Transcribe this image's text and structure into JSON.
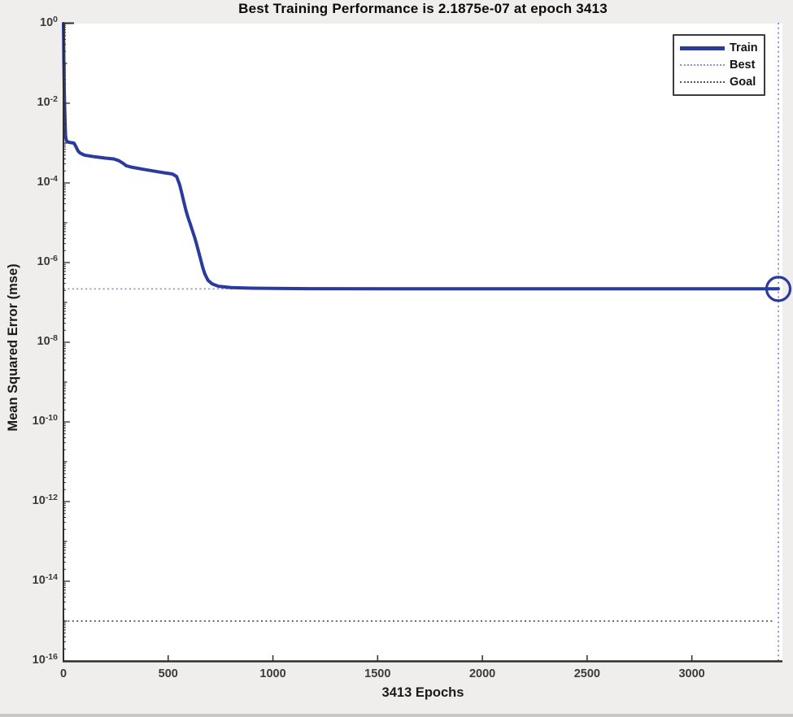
{
  "window": {
    "kind": "matlab-training-performance-figure"
  },
  "chart_data": {
    "type": "line",
    "title": "Best Training Performance is 2.1875e-07 at epoch 3413",
    "xlabel": "3413 Epochs",
    "ylabel": "Mean Squared Error  (mse)",
    "yscale": "log",
    "grid": false,
    "xlim": [
      0,
      3413
    ],
    "ylim": [
      1e-16,
      1
    ],
    "x_ticks": [
      0,
      500,
      1000,
      1500,
      2000,
      2500,
      3000
    ],
    "y_tick_exponents": [
      0,
      -2,
      -4,
      -6,
      -8,
      -10,
      -12,
      -14,
      -16
    ],
    "best": {
      "value": 2.1875e-07,
      "epoch": 3413
    },
    "goal": {
      "value": 1e-15
    },
    "marker": {
      "shape": "open-circle",
      "x": 3413,
      "y": 2.1875e-07
    },
    "series": [
      {
        "name": "Train",
        "color": "#2b3a9d",
        "style": "solid",
        "points": [
          [
            0,
            1.0
          ],
          [
            1,
            0.35
          ],
          [
            2,
            0.12
          ],
          [
            3,
            0.045
          ],
          [
            4,
            0.02
          ],
          [
            6,
            0.008
          ],
          [
            8,
            0.003
          ],
          [
            10,
            0.0015
          ],
          [
            14,
            0.00115
          ],
          [
            25,
            0.00105
          ],
          [
            50,
            0.001
          ],
          [
            58,
            0.00085
          ],
          [
            70,
            0.00063
          ],
          [
            80,
            0.00056
          ],
          [
            100,
            0.0005
          ],
          [
            140,
            0.00046
          ],
          [
            200,
            0.00042
          ],
          [
            240,
            0.0004
          ],
          [
            265,
            0.00036
          ],
          [
            285,
            0.00031
          ],
          [
            300,
            0.00027
          ],
          [
            330,
            0.000245
          ],
          [
            380,
            0.00022
          ],
          [
            440,
            0.000195
          ],
          [
            480,
            0.00018
          ],
          [
            520,
            0.000168
          ],
          [
            540,
            0.000145
          ],
          [
            555,
            9e-05
          ],
          [
            565,
            5.5e-05
          ],
          [
            575,
            3.3e-05
          ],
          [
            585,
            2e-05
          ],
          [
            595,
            1.35e-05
          ],
          [
            605,
            9.5e-06
          ],
          [
            615,
            6.5e-06
          ],
          [
            625,
            4.5e-06
          ],
          [
            635,
            3e-06
          ],
          [
            645,
            1.9e-06
          ],
          [
            655,
            1.2e-06
          ],
          [
            665,
            7.5e-07
          ],
          [
            675,
            5.2e-07
          ],
          [
            690,
            3.6e-07
          ],
          [
            710,
            2.9e-07
          ],
          [
            740,
            2.55e-07
          ],
          [
            800,
            2.35e-07
          ],
          [
            900,
            2.28e-07
          ],
          [
            1000,
            2.24e-07
          ],
          [
            1200,
            2.21e-07
          ],
          [
            1600,
            2.2e-07
          ],
          [
            2000,
            2.19e-07
          ],
          [
            2400,
            2.19e-07
          ],
          [
            2800,
            2.19e-07
          ],
          [
            3100,
            2.19e-07
          ],
          [
            3413,
            2.1875e-07
          ]
        ]
      }
    ],
    "legend": {
      "position": "top-right",
      "items": [
        {
          "label": "Train",
          "style": "solid",
          "color": "#2b3a9d"
        },
        {
          "label": "Best",
          "style": "dotted",
          "color": "#8b8fd9"
        },
        {
          "label": "Goal",
          "style": "dotted",
          "color": "#55555e"
        }
      ]
    },
    "colors": {
      "train_line": "#2b3a9d",
      "best_line": "#8b8fd9",
      "best_epoch_line": "#7d82d4",
      "goal_line": "#55555e",
      "axis": "#2e2e2e",
      "figure_background": "#efeeec",
      "plot_background": "#ffffff"
    }
  }
}
